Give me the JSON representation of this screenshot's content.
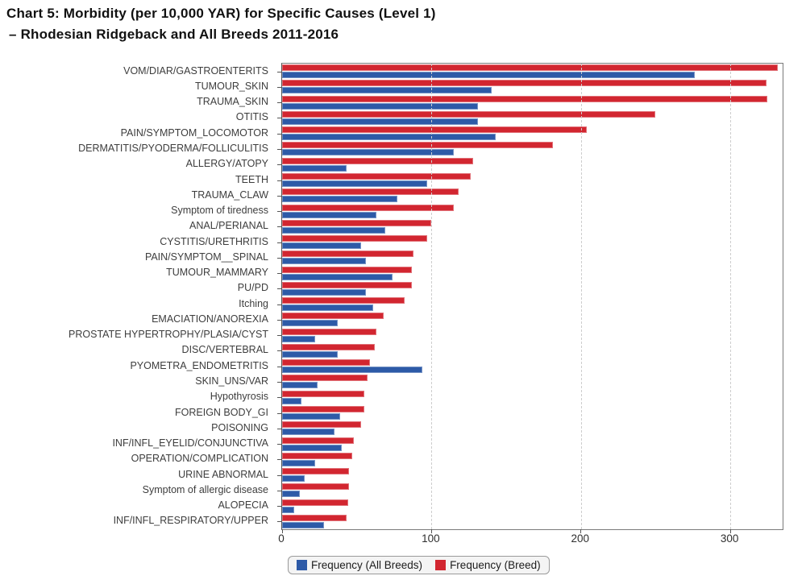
{
  "title": {
    "line1": "Chart 5: Morbidity (per 10,000 YAR) for Specific Causes (Level 1)",
    "line2": "– Rhodesian Ridgeback and All Breeds 2011-2016"
  },
  "colors": {
    "all_breeds_blue": "#2d5aa7",
    "breed_red": "#d22630",
    "axis": "#555555",
    "plot_border": "#7a7a7a",
    "gridline": "#cdcdcd",
    "label_text": "#3d3d3d"
  },
  "chart_data": {
    "type": "bar",
    "orientation": "horizontal",
    "title": "Chart 5: Morbidity (per 10,000 YAR) for Specific Causes (Level 1) – Rhodesian Ridgeback and All Breeds 2011-2016",
    "xlabel": "",
    "ylabel": "",
    "xlim": [
      0,
      335
    ],
    "x_ticks": [
      0,
      100,
      200,
      300
    ],
    "grid": "vertical dashed at x ticks",
    "legend_position": "bottom",
    "categories": [
      "VOM/DIAR/GASTROENTERITS",
      "TUMOUR_SKIN",
      "TRAUMA_SKIN",
      "OTITIS",
      "PAIN/SYMPTOM_LOCOMOTOR",
      "DERMATITIS/PYODERMA/FOLLICULITIS",
      "ALLERGY/ATOPY",
      "TEETH",
      "TRAUMA_CLAW",
      "Symptom of tiredness",
      "ANAL/PERIANAL",
      "CYSTITIS/URETHRITIS",
      "PAIN/SYMPTOM__SPINAL",
      "TUMOUR_MAMMARY",
      "PU/PD",
      "Itching",
      "EMACIATION/ANOREXIA",
      "PROSTATE HYPERTROPHY/PLASIA/CYST",
      "DISC/VERTEBRAL",
      "PYOMETRA_ENDOMETRITIS",
      "SKIN_UNS/VAR",
      "Hypothyrosis",
      "FOREIGN BODY_GI",
      "POISONING",
      "INF/INFL_EYELID/CONJUNCTIVA",
      "OPERATION/COMPLICATION",
      "URINE ABNORMAL",
      "Symptom of allergic disease",
      "ALOPECIA",
      "INF/INFL_RESPIRATORY/UPPER"
    ],
    "series": [
      {
        "name": "Frequency (All Breeds)",
        "color": "#2d5aa7",
        "values": [
          276,
          140,
          131,
          131,
          143,
          115,
          43,
          97,
          77,
          63,
          69,
          53,
          56,
          74,
          56,
          61,
          37,
          22,
          37,
          94,
          24,
          13,
          39,
          35,
          40,
          22,
          15,
          12,
          8,
          28
        ]
      },
      {
        "name": "Frequency (Breed)",
        "color": "#d22630",
        "values": [
          332,
          324,
          325,
          250,
          204,
          181,
          128,
          126,
          118,
          115,
          100,
          97,
          88,
          87,
          87,
          82,
          68,
          63,
          62,
          59,
          57,
          55,
          55,
          53,
          48,
          47,
          45,
          45,
          44,
          43
        ]
      }
    ]
  }
}
